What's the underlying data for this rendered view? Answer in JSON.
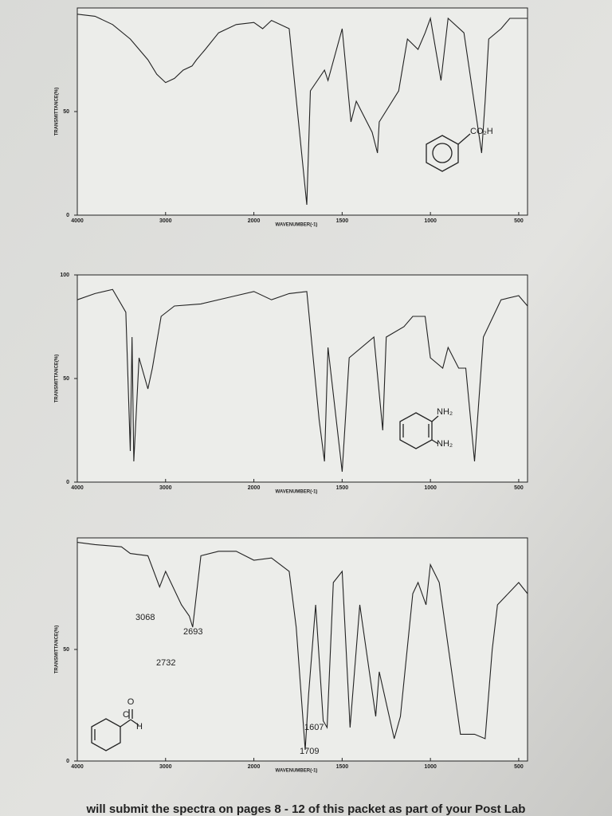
{
  "chart_data": [
    {
      "type": "line",
      "ylabel": "TRANSMITTANCE(%)",
      "xlabel": "WAVENUMBER(-1)",
      "color": "#222222",
      "xlim": [
        4000,
        450
      ],
      "xticks": [
        4000,
        3000,
        2000,
        1500,
        1000,
        500
      ],
      "ylim": [
        0,
        100
      ],
      "yticks": [
        0,
        50
      ],
      "x": [
        4000,
        3800,
        3600,
        3400,
        3200,
        3100,
        3000,
        2900,
        2800,
        2700,
        2650,
        2550,
        2400,
        2200,
        2000,
        1950,
        1900,
        1800,
        1700,
        1680,
        1600,
        1580,
        1500,
        1450,
        1420,
        1330,
        1300,
        1290,
        1180,
        1130,
        1070,
        1030,
        1000,
        940,
        900,
        810,
        710,
        690,
        670,
        600,
        550,
        450
      ],
      "values": [
        97,
        96,
        92,
        85,
        75,
        68,
        64,
        66,
        70,
        72,
        75,
        80,
        88,
        92,
        93,
        90,
        94,
        90,
        5,
        60,
        70,
        65,
        90,
        45,
        55,
        40,
        30,
        45,
        60,
        85,
        80,
        88,
        95,
        65,
        95,
        88,
        30,
        55,
        85,
        90,
        95,
        95
      ],
      "annotations": [
        "CO₂H"
      ]
    },
    {
      "type": "line",
      "ylabel": "TRANSMITTANCE(%)",
      "xlabel": "WAVENUMBER(-1)",
      "color": "#222222",
      "xlim": [
        4000,
        450
      ],
      "xticks": [
        4000,
        3000,
        2000,
        1500,
        1000,
        500
      ],
      "ylim": [
        0,
        100
      ],
      "yticks": [
        0,
        50,
        100
      ],
      "x": [
        4000,
        3800,
        3600,
        3450,
        3400,
        3380,
        3360,
        3300,
        3200,
        3150,
        3050,
        2900,
        2600,
        2200,
        2000,
        1900,
        1800,
        1700,
        1630,
        1600,
        1580,
        1500,
        1460,
        1320,
        1270,
        1250,
        1150,
        1100,
        1030,
        1000,
        930,
        900,
        840,
        800,
        750,
        700,
        600,
        500,
        450
      ],
      "values": [
        88,
        91,
        93,
        82,
        15,
        70,
        10,
        60,
        45,
        55,
        80,
        85,
        86,
        90,
        92,
        88,
        91,
        92,
        30,
        10,
        65,
        5,
        60,
        70,
        25,
        70,
        75,
        80,
        80,
        60,
        55,
        65,
        55,
        55,
        10,
        70,
        88,
        90,
        85
      ],
      "annotations": [
        "NH₂",
        "NH₂"
      ]
    },
    {
      "type": "line",
      "ylabel": "TRANSMITTANCE(%)",
      "xlabel": "WAVENUMBER(-1)",
      "color": "#222222",
      "xlim": [
        4000,
        450
      ],
      "xticks": [
        4000,
        3000,
        2000,
        1500,
        1000,
        500
      ],
      "ylim": [
        0,
        100
      ],
      "yticks": [
        0,
        50
      ],
      "x": [
        4000,
        3800,
        3500,
        3400,
        3200,
        3068,
        3000,
        2820,
        2732,
        2693,
        2600,
        2400,
        2200,
        2000,
        1900,
        1800,
        1760,
        1709,
        1690,
        1650,
        1607,
        1585,
        1550,
        1500,
        1455,
        1400,
        1310,
        1290,
        1205,
        1170,
        1100,
        1070,
        1025,
        1000,
        950,
        830,
        750,
        690,
        650,
        620,
        500,
        450
      ],
      "values": [
        98,
        97,
        96,
        93,
        92,
        78,
        85,
        70,
        65,
        60,
        92,
        94,
        94,
        90,
        91,
        85,
        60,
        5,
        30,
        70,
        18,
        15,
        80,
        85,
        15,
        70,
        20,
        40,
        10,
        20,
        75,
        80,
        70,
        88,
        80,
        12,
        12,
        10,
        50,
        70,
        80,
        75
      ],
      "annotations": [
        "3068",
        "2693",
        "2732",
        "1607",
        "1709",
        "O",
        "C",
        "H"
      ]
    }
  ],
  "footer": "will submit the spectra on pages 8 - 12 of this packet as part of your Post Lab"
}
